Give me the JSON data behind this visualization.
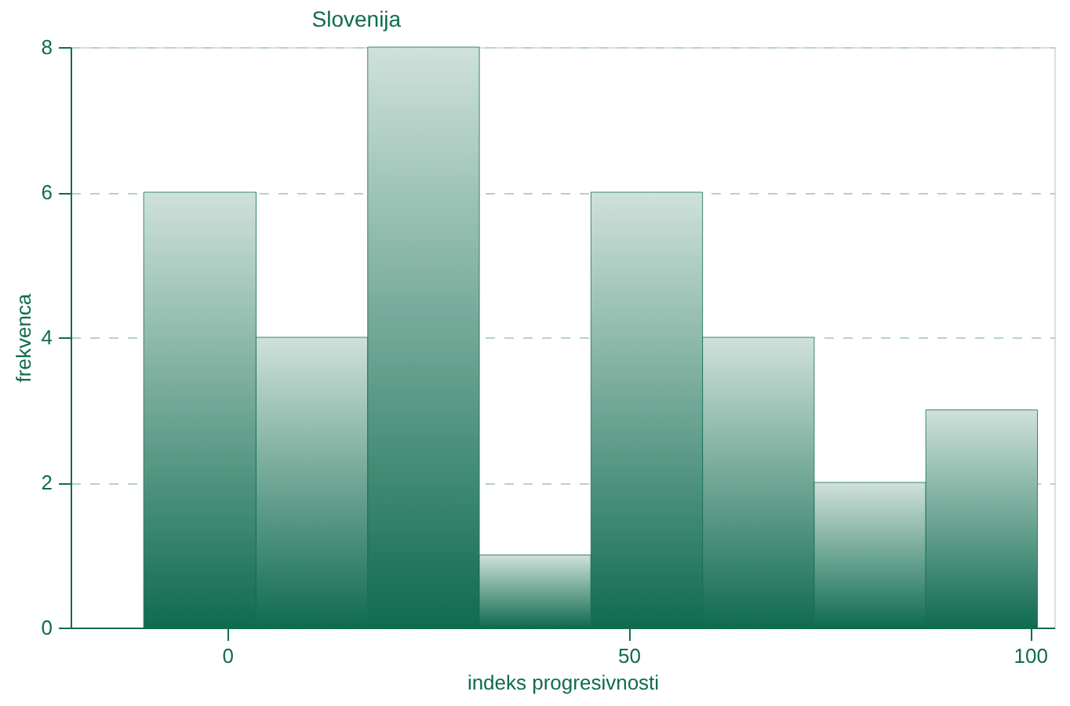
{
  "chart_data": {
    "type": "histogram",
    "title": "Slovenija",
    "xlabel": "indeks progresivnosti",
    "ylabel": "frekvenca",
    "bins": [
      -10.4,
      3.6,
      17.5,
      31.4,
      45.3,
      59.2,
      73.1,
      87,
      100.9
    ],
    "values": [
      6,
      4,
      8,
      1,
      6,
      4,
      2,
      3
    ],
    "color": "#0f6b4f",
    "xlim": [
      -19.5,
      103
    ],
    "xticks": [
      0,
      50,
      100
    ],
    "ylim": [
      0,
      8
    ],
    "yticks": [
      0,
      2,
      4,
      6,
      8
    ],
    "grid": "y"
  }
}
